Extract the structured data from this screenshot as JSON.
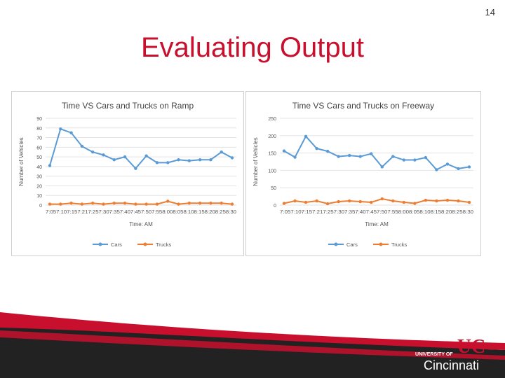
{
  "page_number": "14",
  "title": "Evaluating Output",
  "logo": {
    "top_text": "UNIVERSITY OF",
    "name": "Cincinnati",
    "monogram": "UC"
  },
  "colors": {
    "title_red": "#c8102e",
    "cars": "#5b9bd5",
    "trucks": "#ed7d31",
    "band_red": "#c8102e",
    "band_dark": "#222222"
  },
  "chart_data": [
    {
      "type": "line",
      "title": "Time VS Cars and Trucks on Ramp",
      "xlabel": "Time: AM",
      "ylabel": "Number of Vehicles",
      "categories": [
        "7:05",
        "7:10",
        "7:15",
        "7:21",
        "7:25",
        "7:30",
        "7:35",
        "7:40",
        "7:45",
        "7:50",
        "7:55",
        "8:00",
        "8:05",
        "8:10",
        "8:15",
        "8:20",
        "8:25",
        "8:30"
      ],
      "x_tick_text": "7:057:107:157:217:257:307:357:407:457:507:558:008:058:108:158:208:258:30",
      "yticks": [
        0,
        10,
        20,
        30,
        40,
        50,
        60,
        70,
        80,
        90
      ],
      "ylim": [
        0,
        90
      ],
      "grid": true,
      "legend_position": "bottom",
      "series": [
        {
          "name": "Cars",
          "values": [
            41,
            79,
            75,
            61,
            55,
            52,
            47,
            50,
            38,
            51,
            44,
            44,
            47,
            46,
            47,
            47,
            55,
            49
          ]
        },
        {
          "name": "Trucks",
          "values": [
            1,
            1,
            2,
            1,
            2,
            1,
            2,
            2,
            1,
            1,
            1,
            4,
            1,
            2,
            2,
            2,
            2,
            1
          ]
        }
      ]
    },
    {
      "type": "line",
      "title": "Time VS Cars and Trucks on Freeway",
      "xlabel": "Time: AM",
      "ylabel": "Number of Vehicles",
      "categories": [
        "7:05",
        "7:10",
        "7:15",
        "7:21",
        "7:25",
        "7:30",
        "7:35",
        "7:40",
        "7:45",
        "7:50",
        "7:55",
        "8:00",
        "8:05",
        "8:10",
        "8:15",
        "8:20",
        "8:25",
        "8:30"
      ],
      "x_tick_text": "7:057:107:157:217:257:307:357:407:457:507:558:008:058:108:158:208:258:30",
      "yticks": [
        0,
        50,
        100,
        150,
        200,
        250
      ],
      "ylim": [
        0,
        250
      ],
      "grid": true,
      "legend_position": "bottom",
      "series": [
        {
          "name": "Cars",
          "values": [
            156,
            138,
            198,
            163,
            155,
            140,
            143,
            140,
            148,
            110,
            140,
            130,
            130,
            137,
            102,
            118,
            105,
            110
          ]
        },
        {
          "name": "Trucks",
          "values": [
            5,
            12,
            8,
            12,
            4,
            10,
            12,
            10,
            8,
            18,
            12,
            8,
            5,
            14,
            12,
            14,
            12,
            8
          ]
        }
      ]
    }
  ]
}
